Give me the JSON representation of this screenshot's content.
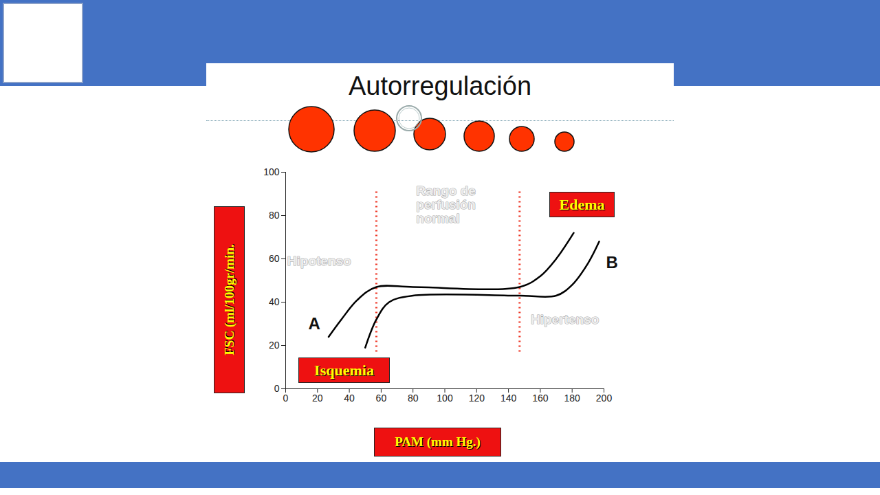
{
  "chart_data": {
    "type": "line",
    "title": "Autorregulación",
    "x_label": "PAM (mm Hg.)",
    "y_label": "FSC (ml/100gr/min.",
    "xlim": [
      0,
      200
    ],
    "ylim": [
      0,
      100
    ],
    "xticks": [
      0,
      20,
      40,
      60,
      80,
      100,
      120,
      140,
      160,
      180,
      200
    ],
    "yticks": [
      0,
      20,
      40,
      60,
      80,
      100
    ],
    "grid": false,
    "series": [
      {
        "name": "A",
        "color": "#000000",
        "x": [
          27,
          35,
          45,
          57,
          80,
          147,
          160,
          170,
          181
        ],
        "values": [
          24,
          32,
          41,
          47,
          47,
          47,
          52,
          60,
          72
        ]
      },
      {
        "name": "B",
        "color": "#000000",
        "x": [
          50,
          57,
          65,
          80,
          147,
          170,
          180,
          190,
          197
        ],
        "values": [
          19,
          32,
          40,
          43,
          43,
          43,
          48,
          58,
          68
        ]
      }
    ],
    "reference_lines": [
      57,
      147
    ],
    "annotations": [
      "Rango de\nperfusión\nnormal",
      "Hipotenso",
      "Hipertenso",
      "Edema",
      "Isquemia"
    ]
  }
}
